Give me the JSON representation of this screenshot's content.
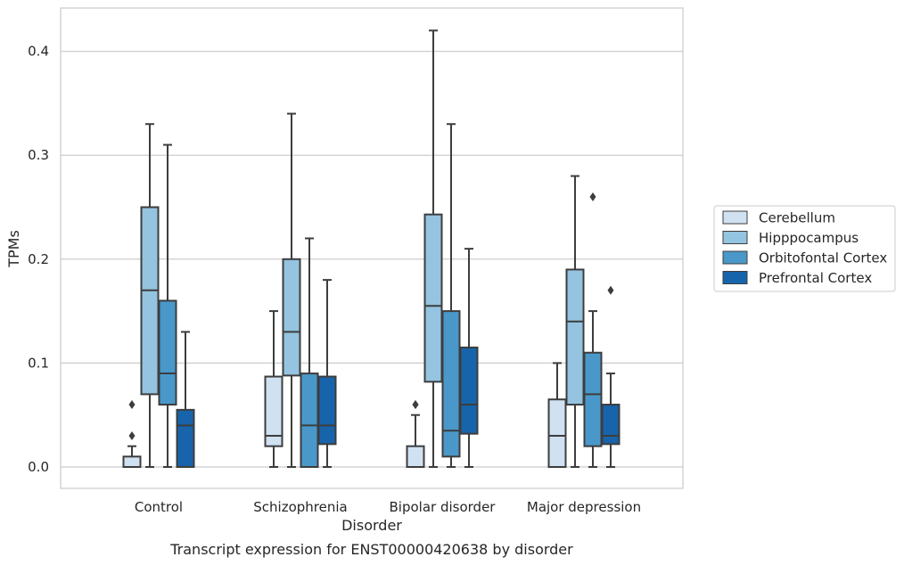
{
  "chart_data": {
    "type": "boxplot",
    "caption": "Transcript expression for ENST00000420638 by disorder",
    "xlabel": "Disorder",
    "ylabel": "TPMs",
    "ylim": [
      -0.02,
      0.443
    ],
    "yticks": [
      "0.0",
      "0.1",
      "0.2",
      "0.3",
      "0.4"
    ],
    "ytick_values": [
      0.0,
      0.1,
      0.2,
      0.3,
      0.4
    ],
    "grid": "horizontal",
    "legend_position": "right",
    "categories": [
      "Control",
      "Schizophrenia",
      "Bipolar disorder",
      "Major depression"
    ],
    "series": [
      {
        "name": "Cerebellum",
        "color": "#d0e1f2",
        "boxes": [
          {
            "q1": 0.0,
            "median": 0.0,
            "q3": 0.01,
            "whislo": 0.0,
            "whishi": 0.02,
            "fliers": [
              0.03,
              0.06
            ]
          },
          {
            "q1": 0.02,
            "median": 0.03,
            "q3": 0.087,
            "whislo": 0.0,
            "whishi": 0.15,
            "fliers": []
          },
          {
            "q1": 0.0,
            "median": 0.0,
            "q3": 0.02,
            "whislo": 0.0,
            "whishi": 0.05,
            "fliers": [
              0.06,
              0.06
            ]
          },
          {
            "q1": 0.0,
            "median": 0.03,
            "q3": 0.065,
            "whislo": 0.0,
            "whishi": 0.1,
            "fliers": []
          }
        ]
      },
      {
        "name": "Hipppocampus",
        "color": "#94c4df",
        "boxes": [
          {
            "q1": 0.07,
            "median": 0.17,
            "q3": 0.25,
            "whislo": 0.0,
            "whishi": 0.33,
            "fliers": []
          },
          {
            "q1": 0.088,
            "median": 0.13,
            "q3": 0.2,
            "whislo": 0.0,
            "whishi": 0.34,
            "fliers": []
          },
          {
            "q1": 0.082,
            "median": 0.155,
            "q3": 0.243,
            "whislo": 0.0,
            "whishi": 0.42,
            "fliers": []
          },
          {
            "q1": 0.06,
            "median": 0.14,
            "q3": 0.19,
            "whislo": 0.0,
            "whishi": 0.28,
            "fliers": []
          }
        ]
      },
      {
        "name": "Orbitofontal Cortex",
        "color": "#4a98c9",
        "boxes": [
          {
            "q1": 0.06,
            "median": 0.09,
            "q3": 0.16,
            "whislo": 0.0,
            "whishi": 0.31,
            "fliers": []
          },
          {
            "q1": 0.0,
            "median": 0.04,
            "q3": 0.09,
            "whislo": 0.0,
            "whishi": 0.22,
            "fliers": []
          },
          {
            "q1": 0.01,
            "median": 0.035,
            "q3": 0.15,
            "whislo": 0.0,
            "whishi": 0.33,
            "fliers": []
          },
          {
            "q1": 0.02,
            "median": 0.07,
            "q3": 0.11,
            "whislo": 0.0,
            "whishi": 0.15,
            "fliers": [
              0.26
            ]
          }
        ]
      },
      {
        "name": "Prefrontal Cortex",
        "color": "#1764ab",
        "boxes": [
          {
            "q1": 0.0,
            "median": 0.04,
            "q3": 0.055,
            "whislo": 0.0,
            "whishi": 0.13,
            "fliers": []
          },
          {
            "q1": 0.022,
            "median": 0.04,
            "q3": 0.087,
            "whislo": 0.0,
            "whishi": 0.18,
            "fliers": []
          },
          {
            "q1": 0.032,
            "median": 0.06,
            "q3": 0.115,
            "whislo": 0.0,
            "whishi": 0.21,
            "fliers": []
          },
          {
            "q1": 0.022,
            "median": 0.03,
            "q3": 0.06,
            "whislo": 0.0,
            "whishi": 0.09,
            "fliers": [
              0.17
            ]
          }
        ]
      }
    ]
  }
}
